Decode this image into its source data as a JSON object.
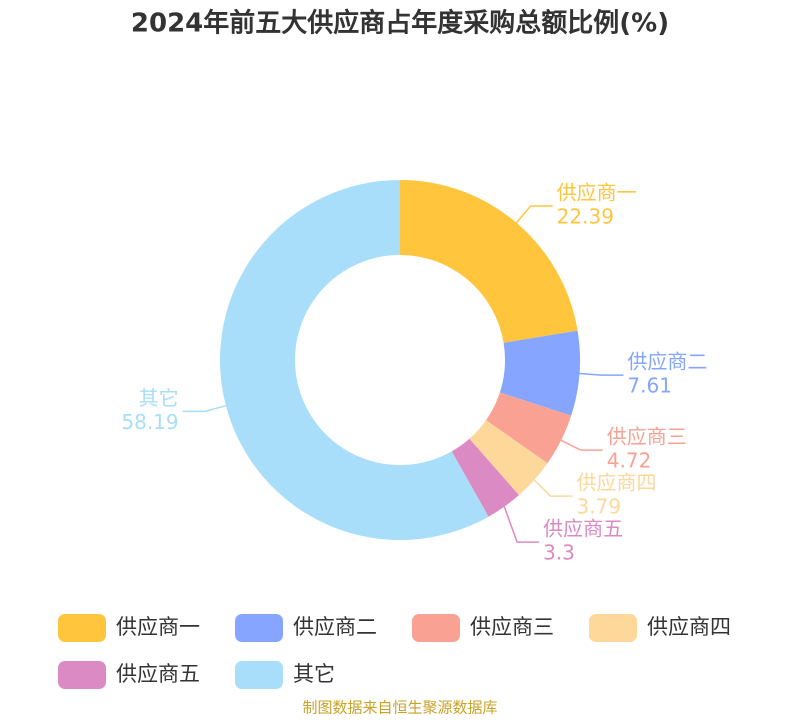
{
  "chart_data": {
    "type": "donut",
    "title": "2024年前五大供应商占年度采购总额比例(%)",
    "categories": [
      "供应商一",
      "供应商二",
      "供应商三",
      "供应商四",
      "供应商五",
      "其它"
    ],
    "values": [
      22.39,
      7.61,
      4.72,
      3.79,
      3.3,
      58.19
    ],
    "colors": [
      "#ffc53d",
      "#85a5ff",
      "#f9a294",
      "#fed79b",
      "#dc8ac3",
      "#a8def9"
    ],
    "legend": "bottom",
    "source": "制图数据来自恒生聚源数据库"
  }
}
